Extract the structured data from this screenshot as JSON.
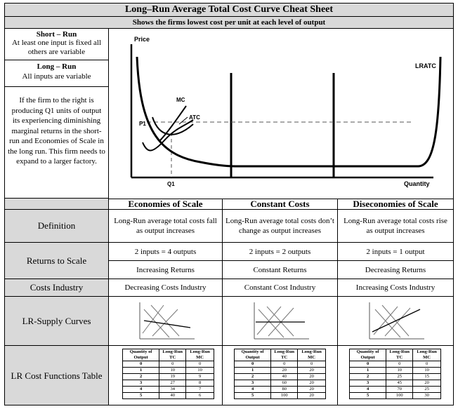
{
  "title": "Long–Run Average Total Cost Curve Cheat Sheet",
  "subtitle": "Shows the firms lowest cost per unit at each level of output",
  "left": {
    "short_run_title": "Short – Run",
    "short_run_text": "At least one input is fixed all others are variable",
    "long_run_title": "Long – Run",
    "long_run_text": "All inputs are variable",
    "note": "If the firm to the right is producing Q1 units of output its experiencing diminishing marginal returns in the short-run and Economies of Scale in the long run. This firm needs to expand to a larger factory."
  },
  "graph": {
    "ylabel": "Price",
    "xlabel": "Quantity",
    "mc": "MC",
    "atc": "ATC",
    "p1": "P1",
    "q1": "Q1",
    "lratc": "LRATC"
  },
  "columns": [
    "Economies of Scale",
    "Constant Costs",
    "Diseconomies of Scale"
  ],
  "rows": {
    "definition": {
      "label": "Definition",
      "values": [
        "Long-Run average total costs fall as output increases",
        "Long-Run average total costs don’t change as output increases",
        "Long-Run average total costs rise as output increases"
      ]
    },
    "returns": {
      "label": "Returns to Scale",
      "inputs": [
        "2 inputs = 4 outputs",
        "2 inputs = 2 outputs",
        "2 inputs = 1 output"
      ],
      "names": [
        "Increasing Returns",
        "Constant Returns",
        "Decreasing Returns"
      ]
    },
    "costs": {
      "label": "Costs Industry",
      "values": [
        "Decreasing Costs Industry",
        "Constant Cost Industry",
        "Increasing Costs Industry"
      ]
    },
    "supply": {
      "label": "LR-Supply Curves"
    },
    "lrcost": {
      "label": "LR Cost Functions Table"
    }
  },
  "mini_tables": {
    "headers": [
      "Quantity of Output",
      "Long-Run TC",
      "Long-Run MC"
    ],
    "tables": [
      [
        [
          "0",
          "0",
          "0"
        ],
        [
          "1",
          "10",
          "10"
        ],
        [
          "2",
          "19",
          "9"
        ],
        [
          "3",
          "27",
          "8"
        ],
        [
          "4",
          "34",
          "7"
        ],
        [
          "5",
          "40",
          "6"
        ]
      ],
      [
        [
          "0",
          "0",
          "0"
        ],
        [
          "1",
          "20",
          "20"
        ],
        [
          "2",
          "40",
          "20"
        ],
        [
          "3",
          "60",
          "20"
        ],
        [
          "4",
          "80",
          "20"
        ],
        [
          "5",
          "100",
          "20"
        ]
      ],
      [
        [
          "0",
          "0",
          "0"
        ],
        [
          "1",
          "10",
          "10"
        ],
        [
          "2",
          "25",
          "15"
        ],
        [
          "3",
          "45",
          "20"
        ],
        [
          "4",
          "70",
          "25"
        ],
        [
          "5",
          "100",
          "30"
        ]
      ]
    ]
  }
}
